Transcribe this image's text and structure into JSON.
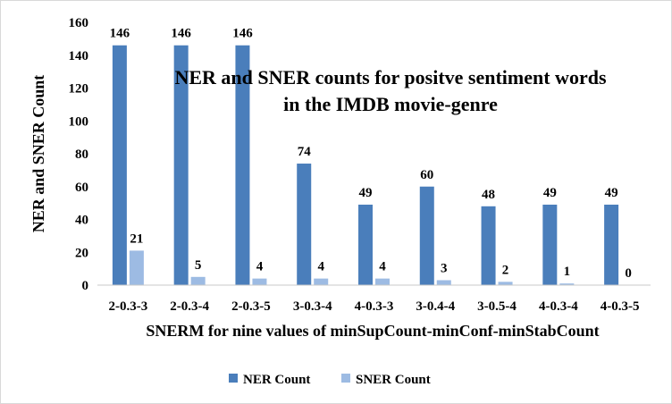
{
  "chart_data": {
    "type": "bar",
    "title_lines": [
      "NER and SNER counts for positve sentiment words",
      "in the IMDB movie-genre"
    ],
    "xlabel": "SNERM for nine values of minSupCount-minConf-minStabCount",
    "ylabel": "NER and SNER Count",
    "ylim": [
      0,
      160
    ],
    "yticks": [
      0,
      20,
      40,
      60,
      80,
      100,
      120,
      140,
      160
    ],
    "grid": false,
    "legend_position": "bottom",
    "categories": [
      "2-0.3-3",
      "2-0.3-4",
      "2-0.3-5",
      "3-0.3-4",
      "4-0.3-3",
      "3-0.4-4",
      "3-0.5-4",
      "4-0.3-4",
      "4-0.3-5"
    ],
    "series": [
      {
        "name": "NER Count",
        "values": [
          146,
          146,
          146,
          74,
          49,
          60,
          48,
          49,
          49
        ],
        "color": "#4a7ebb"
      },
      {
        "name": "SNER Count",
        "values": [
          21,
          5,
          4,
          4,
          4,
          3,
          2,
          1,
          0
        ],
        "color": "#9dbbe3"
      }
    ]
  }
}
